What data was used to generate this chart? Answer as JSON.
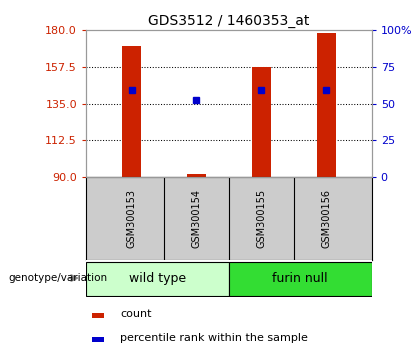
{
  "title": "GDS3512 / 1460353_at",
  "samples": [
    "GSM300153",
    "GSM300154",
    "GSM300155",
    "GSM300156"
  ],
  "group_label": "genotype/variation",
  "bar_bottom": 90,
  "bar_tops": [
    170,
    92,
    157.5,
    178
  ],
  "blue_markers": [
    143,
    137,
    143,
    143
  ],
  "ylim": [
    90,
    180
  ],
  "yticks_left": [
    90,
    112.5,
    135,
    157.5,
    180
  ],
  "yticks_right": [
    0,
    25,
    50,
    75,
    100
  ],
  "bar_color": "#cc2200",
  "marker_color": "#0000cc",
  "bg_color": "#ffffff",
  "left_tick_color": "#cc2200",
  "right_tick_color": "#0000cc",
  "legend_red_label": "count",
  "legend_blue_label": "percentile rank within the sample",
  "group_bg_wild": "#ccffcc",
  "group_bg_furin": "#33dd33",
  "sample_bg": "#cccccc",
  "wild_type_label": "wild type",
  "furin_null_label": "furin null",
  "bar_width": 0.3,
  "xlim": [
    0.3,
    4.7
  ]
}
